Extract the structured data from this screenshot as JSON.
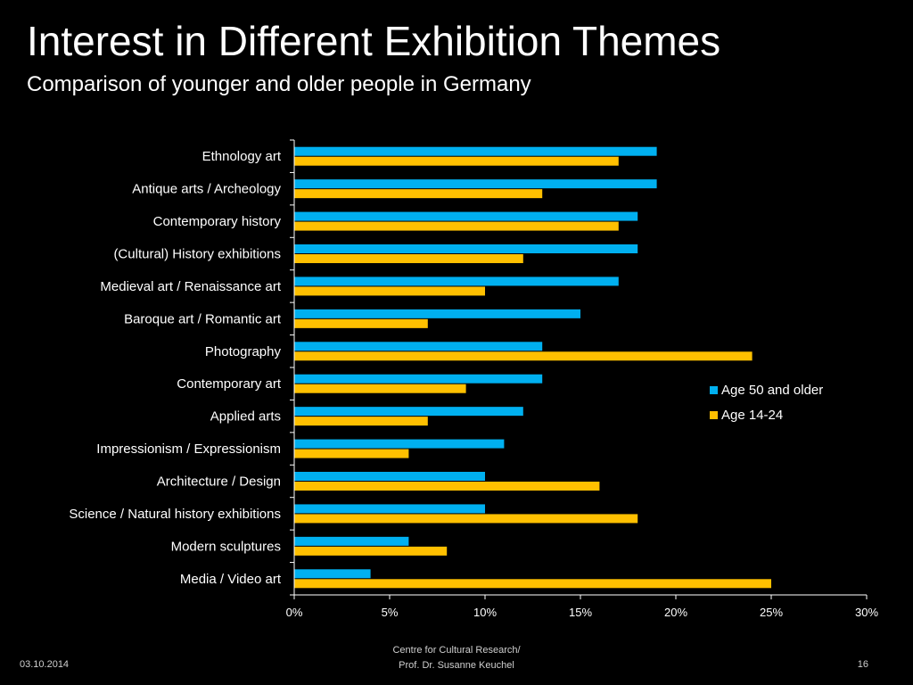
{
  "slide": {
    "date": "03.10.2014",
    "footer_line1": "Centre for Cultural Research/",
    "footer_line2": "Prof. Dr. Susanne Keuchel",
    "page_number": "16"
  },
  "chart_data": {
    "type": "bar",
    "orientation": "horizontal",
    "title": "Interest in Different Exhibition Themes",
    "subtitle": "Comparison of younger and older people in Germany",
    "categories": [
      "Ethnology art",
      "Antique arts / Archeology",
      "Contemporary history",
      "(Cultural) History exhibitions",
      "Medieval art / Renaissance art",
      "Baroque art / Romantic art",
      "Photography",
      "Contemporary art",
      "Applied arts",
      "Impressionism / Expressionism",
      "Architecture / Design",
      "Science / Natural history exhibitions",
      "Modern sculptures",
      "Media / Video art"
    ],
    "series": [
      {
        "name": "Age 50 and older",
        "color": "#00b0f0",
        "values": [
          19,
          19,
          18,
          18,
          17,
          15,
          13,
          13,
          12,
          11,
          10,
          10,
          6,
          4
        ]
      },
      {
        "name": "Age 14-24",
        "color": "#ffc000",
        "values": [
          17,
          13,
          17,
          12,
          10,
          7,
          24,
          9,
          7,
          6,
          16,
          18,
          8,
          25
        ]
      }
    ],
    "xlim": [
      0,
      30
    ],
    "xticks": [
      0,
      5,
      10,
      15,
      20,
      25,
      30
    ],
    "tick_format": "percent",
    "grid": false,
    "legend_position": "right"
  }
}
